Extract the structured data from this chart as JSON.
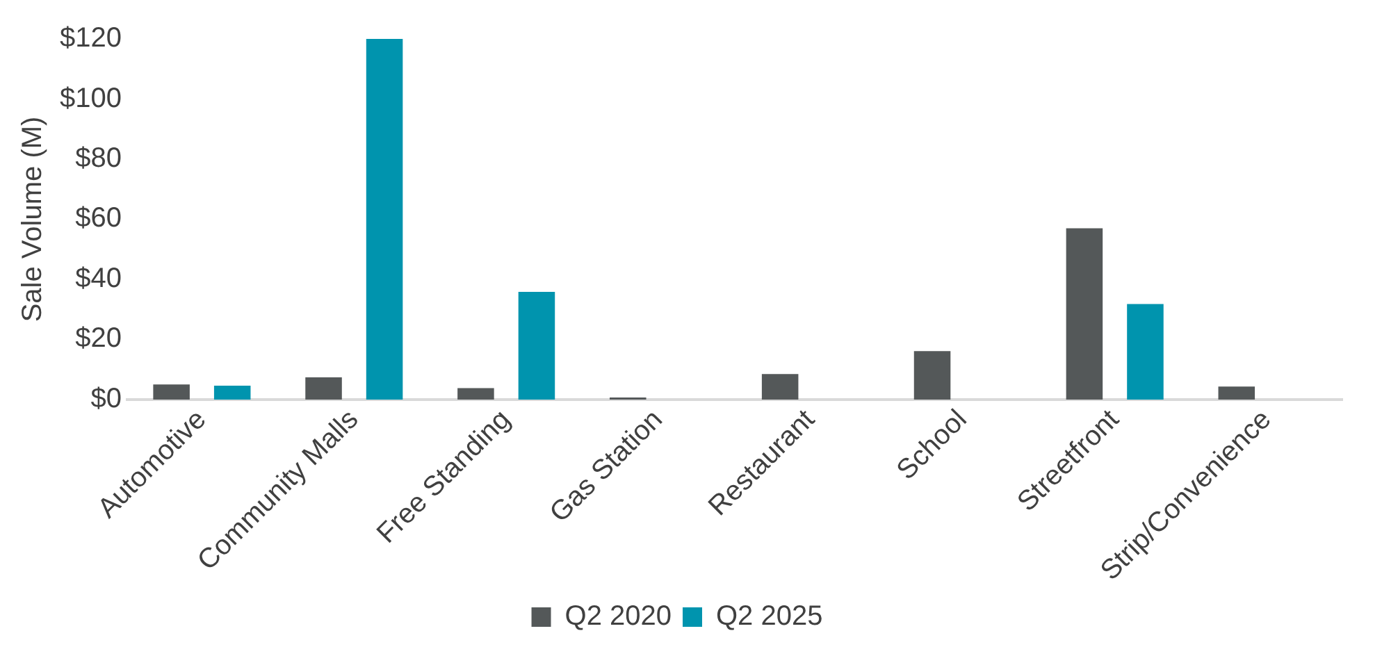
{
  "chart_data": {
    "type": "bar",
    "ylabel": "Sale Volume (M)",
    "categories": [
      "Automotive",
      "Community Malls",
      "Free Standing",
      "Gas Station",
      "Restaurant",
      "School",
      "Streetfront",
      "Strip/Convenience"
    ],
    "series": [
      {
        "name": "Q2 2020",
        "color": "#545859",
        "values": [
          5,
          7.4,
          3.8,
          0.7,
          8.5,
          16.1,
          57,
          4.3
        ]
      },
      {
        "name": "Q2 2025",
        "color": "#0094ae",
        "values": [
          4.6,
          120,
          35.8,
          null,
          null,
          null,
          31.8,
          null
        ]
      }
    ],
    "ylim": [
      0,
      120
    ],
    "yticks": [
      {
        "value": 0,
        "label": "$0"
      },
      {
        "value": 20,
        "label": "$20"
      },
      {
        "value": 40,
        "label": "$40"
      },
      {
        "value": 60,
        "label": "$60"
      },
      {
        "value": 80,
        "label": "$80"
      },
      {
        "value": 100,
        "label": "$100"
      },
      {
        "value": 120,
        "label": "$120"
      }
    ],
    "grid": false,
    "legend": "bottom"
  }
}
